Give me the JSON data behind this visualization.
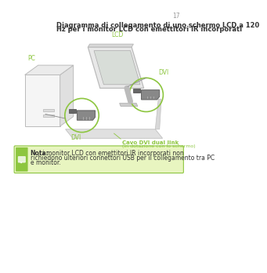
{
  "bg_color": "#ffffff",
  "page_number": "17",
  "title_line1": "Diagramma di collegamento di uno schermo LCD a 120",
  "title_line2": "Hz per i monitor LCD con emettitori IR incorporati",
  "title_fontsize": 6.0,
  "green_color": "#8dc63f",
  "dark_color": "#333333",
  "gray_color": "#aaaaaa",
  "light_gray": "#e8e8e8",
  "mid_gray": "#cccccc",
  "dark_gray": "#888888",
  "note_bg": "#e8f5c0",
  "note_border": "#8dc63f",
  "note_icon_bg": "#8dc63f",
  "note_bold": "Nota:",
  "note_rest": " i monitor LCD con emettitori IR incorporati non\nrichiedono ulteriori connettori USB per il collegamento tra PC\ne monitor.",
  "note_fontsize": 5.5,
  "cable_label1": "Cavo DVI dual link",
  "cable_label2": "(in dotazione con lo schermo)",
  "label_DVI1": "DVI",
  "label_DVI2": "DVI",
  "label_LCD": "LCD",
  "label_PC": "PC"
}
